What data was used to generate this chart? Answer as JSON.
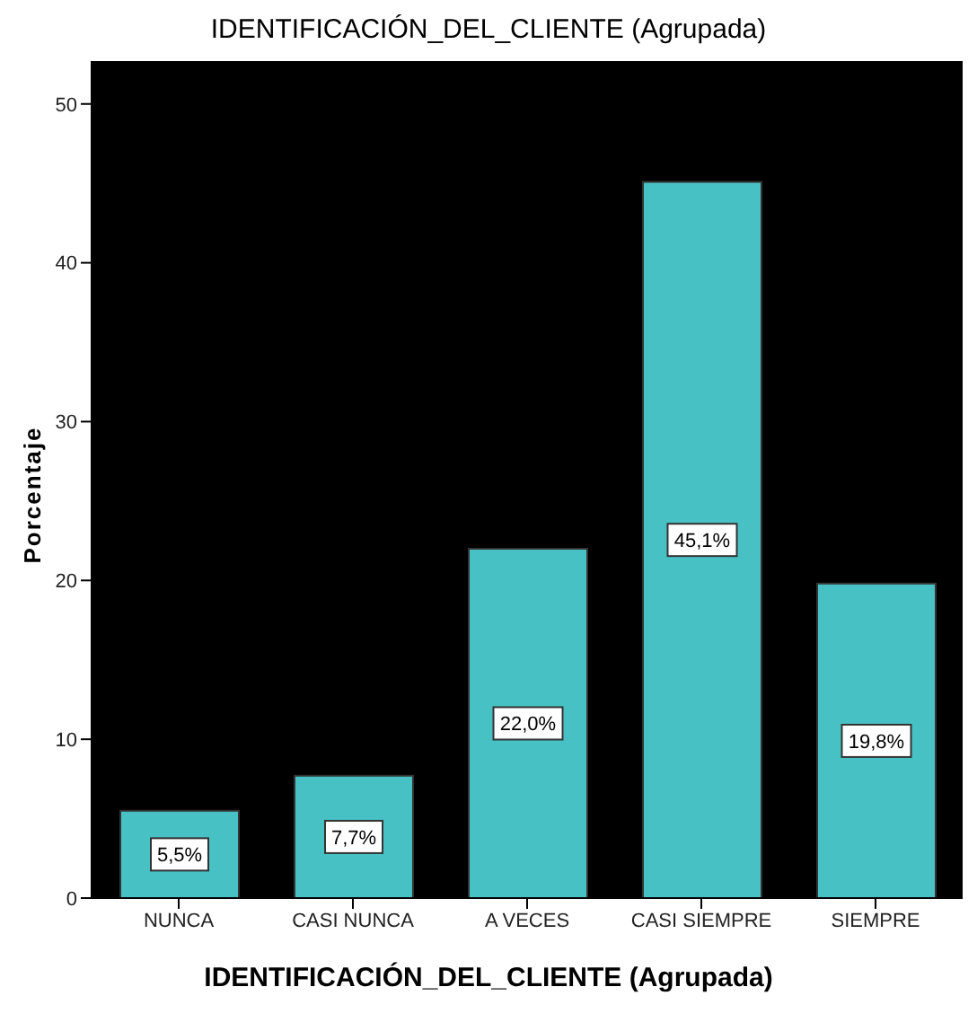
{
  "chart_data": {
    "type": "bar",
    "title": "IDENTIFICACIÓN_DEL_CLIENTE (Agrupada)",
    "xlabel": "IDENTIFICACIÓN_DEL_CLIENTE (Agrupada)",
    "ylabel": "Porcentaje",
    "categories": [
      "NUNCA",
      "CASI NUNCA",
      "A VECES",
      "CASI SIEMPRE",
      "SIEMPRE"
    ],
    "values": [
      5.5,
      7.7,
      22.0,
      45.1,
      19.8
    ],
    "value_labels": [
      "5,5%",
      "7,7%",
      "22,0%",
      "45,1%",
      "19,8%"
    ],
    "color": "#48c1c4",
    "ylim": [
      0,
      52.7
    ],
    "yticks": [
      0,
      10,
      20,
      30,
      40,
      50
    ],
    "grid": false,
    "legend": false
  }
}
